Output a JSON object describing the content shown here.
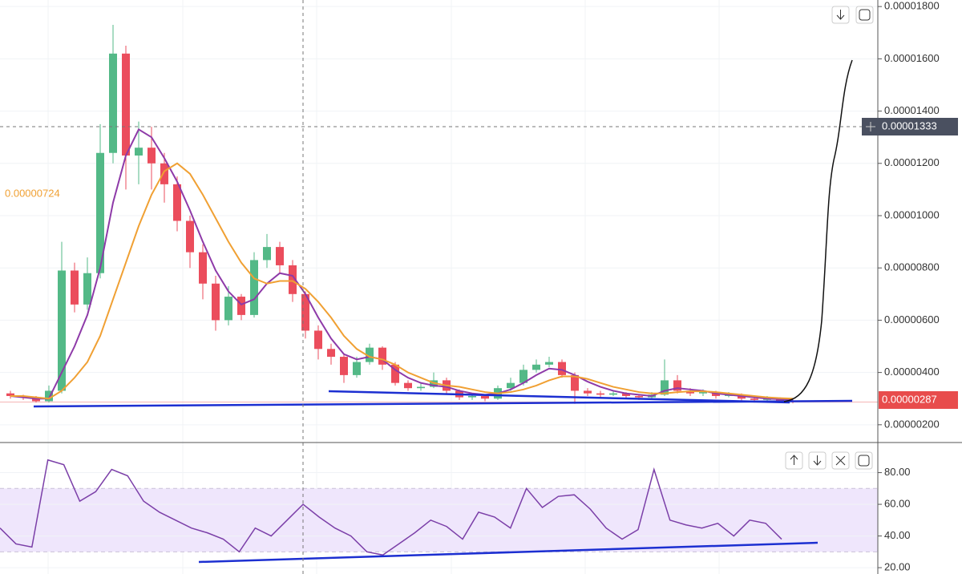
{
  "chart_data": [
    {
      "type": "candlestick",
      "up_color": "#53b987",
      "down_color": "#eb4d5c",
      "open": [
        3.2e-06,
        3.1e-06,
        3.05e-06,
        2.9e-06,
        3.3e-06,
        7.9e-06,
        6.6e-06,
        7.8e-06,
        1.24e-05,
        1.62e-05,
        1.23e-05,
        1.26e-05,
        1.2e-05,
        1.12e-05,
        9.8e-06,
        8.6e-06,
        7.4e-06,
        6e-06,
        6.9e-06,
        6.2e-06,
        8.3e-06,
        8.8e-06,
        8.1e-06,
        7e-06,
        5.6e-06,
        4.9e-06,
        4.6e-06,
        3.9e-06,
        4.4e-06,
        4.95e-06,
        4.3e-06,
        3.6e-06,
        3.4e-06,
        3.45e-06,
        3.7e-06,
        3.3e-06,
        3.05e-06,
        3.1e-06,
        3e-06,
        3.4e-06,
        3.6e-06,
        4.1e-06,
        4.3e-06,
        4.4e-06,
        3.9e-06,
        3.3e-06,
        3.2e-06,
        3.15e-06,
        3.2e-06,
        3.1e-06,
        3.05e-06,
        3.15e-06,
        3.7e-06,
        3.3e-06,
        3.2e-06,
        3.25e-06,
        3.1e-06,
        3.15e-06,
        3e-06,
        2.95e-06,
        3e-06,
        2.93e-06
      ],
      "high": [
        3.3e-06,
        3.15e-06,
        3.1e-06,
        3.5e-06,
        9e-06,
        8.2e-06,
        8.4e-06,
        1.35e-05,
        1.73e-05,
        1.65e-05,
        1.36e-05,
        1.34e-05,
        1.24e-05,
        1.15e-05,
        1e-05,
        8.9e-06,
        7.7e-06,
        7.3e-06,
        7e-06,
        8.6e-06,
        9.3e-06,
        9e-06,
        8.3e-06,
        7.1e-06,
        5.8e-06,
        5.1e-06,
        4.7e-06,
        4.6e-06,
        5.1e-06,
        5e-06,
        4.4e-06,
        3.7e-06,
        3.6e-06,
        4e-06,
        3.8e-06,
        3.35e-06,
        3.2e-06,
        3.15e-06,
        3.5e-06,
        3.8e-06,
        4.3e-06,
        4.5e-06,
        4.6e-06,
        4.5e-06,
        4e-06,
        3.4e-06,
        3.3e-06,
        3.3e-06,
        3.25e-06,
        3.15e-06,
        3.25e-06,
        4.5e-06,
        3.9e-06,
        3.4e-06,
        3.35e-06,
        3.3e-06,
        3.25e-06,
        3.2e-06,
        3.05e-06,
        3.1e-06,
        3.05e-06,
        2.98e-06
      ],
      "low": [
        3e-06,
        2.95e-06,
        2.85e-06,
        2.85e-06,
        3.2e-06,
        6.3e-06,
        6.4e-06,
        7.6e-06,
        1.2e-05,
        1.1e-05,
        1.12e-05,
        1.1e-05,
        1.05e-05,
        9.4e-06,
        8e-06,
        6.8e-06,
        5.6e-06,
        5.8e-06,
        6e-06,
        6.1e-06,
        8e-06,
        7.8e-06,
        6.7e-06,
        5.3e-06,
        4.5e-06,
        4.3e-06,
        3.6e-06,
        3.8e-06,
        4.3e-06,
        4.1e-06,
        3.5e-06,
        3.3e-06,
        3.3e-06,
        3.4e-06,
        3.2e-06,
        2.95e-06,
        2.95e-06,
        2.9e-06,
        2.95e-06,
        3.3e-06,
        3.5e-06,
        4e-06,
        4.2e-06,
        3.8e-06,
        2.8e-06,
        3.1e-06,
        3.05e-06,
        3.1e-06,
        3e-06,
        2.95e-06,
        3e-06,
        3.1e-06,
        3.2e-06,
        3.1e-06,
        3.1e-06,
        3e-06,
        3.05e-06,
        2.9e-06,
        2.85e-06,
        2.9e-06,
        2.85e-06,
        2.82e-06
      ],
      "close": [
        3.1e-06,
        3.05e-06,
        2.9e-06,
        3.3e-06,
        7.9e-06,
        6.6e-06,
        7.8e-06,
        1.24e-05,
        1.62e-05,
        1.23e-05,
        1.26e-05,
        1.2e-05,
        1.12e-05,
        9.8e-06,
        8.6e-06,
        7.4e-06,
        6e-06,
        6.9e-06,
        6.2e-06,
        8.3e-06,
        8.8e-06,
        8.1e-06,
        7e-06,
        5.6e-06,
        4.9e-06,
        4.6e-06,
        3.9e-06,
        4.4e-06,
        4.95e-06,
        4.3e-06,
        3.6e-06,
        3.4e-06,
        3.45e-06,
        3.7e-06,
        3.3e-06,
        3.05e-06,
        3.1e-06,
        3e-06,
        3.4e-06,
        3.6e-06,
        4.1e-06,
        4.3e-06,
        4.4e-06,
        3.9e-06,
        3.3e-06,
        3.2e-06,
        3.15e-06,
        3.2e-06,
        3.1e-06,
        3.05e-06,
        3.15e-06,
        3.7e-06,
        3.3e-06,
        3.2e-06,
        3.25e-06,
        3.1e-06,
        3.15e-06,
        3e-06,
        2.95e-06,
        3e-06,
        2.93e-06,
        2.87e-06
      ],
      "overlays": [
        {
          "color": "#8e3aa8",
          "values": [
            3.1e-06,
            3.05e-06,
            3e-06,
            3e-06,
            4e-06,
            5e-06,
            6.2e-06,
            8e-06,
            1.05e-05,
            1.23e-05,
            1.33e-05,
            1.3e-05,
            1.22e-05,
            1.13e-05,
            1.02e-05,
            9e-06,
            7.9e-06,
            7.1e-06,
            6.6e-06,
            6.8e-06,
            7.4e-06,
            7.8e-06,
            7.7e-06,
            7e-06,
            6.1e-06,
            5.3e-06,
            4.7e-06,
            4.5e-06,
            4.6e-06,
            4.5e-06,
            4.1e-06,
            3.8e-06,
            3.6e-06,
            3.5e-06,
            3.45e-06,
            3.3e-06,
            3.2e-06,
            3.15e-06,
            3.2e-06,
            3.35e-06,
            3.6e-06,
            3.9e-06,
            4.15e-06,
            4.1e-06,
            3.9e-06,
            3.65e-06,
            3.45e-06,
            3.3e-06,
            3.2e-06,
            3.15e-06,
            3.1e-06,
            3.3e-06,
            3.4e-06,
            3.35e-06,
            3.3e-06,
            3.2e-06,
            3.15e-06,
            3.1e-06,
            3.05e-06,
            3e-06,
            2.98e-06,
            2.95e-06
          ]
        },
        {
          "color": "#f0a033",
          "label": "0.00000724",
          "values": [
            3.1e-06,
            3.1e-06,
            3.05e-06,
            3e-06,
            3.3e-06,
            3.8e-06,
            4.4e-06,
            5.4e-06,
            6.8e-06,
            8.2e-06,
            9.6e-06,
            1.08e-05,
            1.17e-05,
            1.2e-05,
            1.16e-05,
            1.08e-05,
            9.9e-06,
            9e-06,
            8.2e-06,
            7.6e-06,
            7.4e-06,
            7.5e-06,
            7.5e-06,
            7.2e-06,
            6.7e-06,
            6.1e-06,
            5.4e-06,
            4.9e-06,
            4.6e-06,
            4.5e-06,
            4.3e-06,
            4e-06,
            3.8e-06,
            3.6e-06,
            3.5e-06,
            3.45e-06,
            3.35e-06,
            3.25e-06,
            3.2e-06,
            3.25e-06,
            3.35e-06,
            3.5e-06,
            3.7e-06,
            3.85e-06,
            3.85e-06,
            3.75e-06,
            3.6e-06,
            3.45e-06,
            3.35e-06,
            3.25e-06,
            3.2e-06,
            3.2e-06,
            3.25e-06,
            3.28e-06,
            3.28e-06,
            3.25e-06,
            3.2e-06,
            3.15e-06,
            3.1e-06,
            3.05e-06,
            3.02e-06,
            3e-06
          ]
        }
      ],
      "ylim": [
        1.32e-06,
        1.825e-05
      ],
      "yticks": [
        {
          "value": 2e-06,
          "label": "0.00000200"
        },
        {
          "value": 4e-06,
          "label": "0.00000400"
        },
        {
          "value": 6e-06,
          "label": "0.00000600"
        },
        {
          "value": 8e-06,
          "label": "0.00000800"
        },
        {
          "value": 1e-05,
          "label": "0.00001000"
        },
        {
          "value": 1.2e-05,
          "label": "0.00001200"
        },
        {
          "value": 1.4e-05,
          "label": "0.00001400"
        },
        {
          "value": 1.6e-05,
          "label": "0.00001600"
        },
        {
          "value": 1.8e-05,
          "label": "0.00001800"
        }
      ],
      "grid": true,
      "crosshair_label": "0.00001333",
      "last_price_label": "0.00000287"
    },
    {
      "type": "line",
      "color": "#7b3fa8",
      "band": [
        30,
        70
      ],
      "band_color": "#efe6fc",
      "values": [
        45,
        35,
        33,
        88,
        85,
        62,
        68,
        82,
        78,
        62,
        55,
        50,
        45,
        42,
        38,
        30,
        45,
        40,
        50,
        60,
        52,
        45,
        40,
        30,
        28,
        35,
        42,
        50,
        46,
        38,
        55,
        52,
        45,
        70,
        58,
        65,
        66,
        57,
        45,
        38,
        44,
        82,
        50,
        47,
        45,
        48,
        40,
        50,
        48,
        38
      ],
      "ylim": [
        16,
        98.5
      ],
      "yticks": [
        {
          "value": 20,
          "label": "20.00"
        },
        {
          "value": 40,
          "label": "40.00"
        },
        {
          "value": 60,
          "label": "60.00"
        },
        {
          "value": 80,
          "label": "80.00"
        }
      ],
      "grid": true
    }
  ]
}
